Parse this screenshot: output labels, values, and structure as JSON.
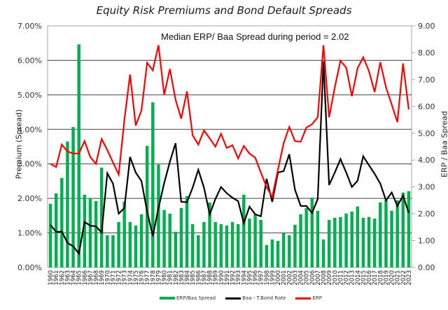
{
  "chart_data": {
    "type": "bar+line",
    "title": "Equity Risk Premiums and Bond Default Spreads",
    "annotation": "Median ERP/ Baa Spread during period = 2.02",
    "ylabel_left": "Premium (Spread)",
    "ylabel_right": "ERP / Baa Spread",
    "ylim_left": [
      0,
      7
    ],
    "ylim_right": [
      0,
      9
    ],
    "yticks_left": [
      "0.00%",
      "1.00%",
      "2.00%",
      "3.00%",
      "4.00%",
      "5.00%",
      "6.00%",
      "7.00%"
    ],
    "yticks_right": [
      "0.00",
      "1.00",
      "2.00",
      "3.00",
      "4.00",
      "5.00",
      "6.00",
      "7.00",
      "8.00",
      "9.00"
    ],
    "grid": true,
    "legend_position": "bottom",
    "categories": [
      "1960",
      "1961",
      "1962",
      "1963",
      "1964",
      "1965",
      "1966",
      "1967",
      "1968",
      "1969",
      "1970",
      "1971",
      "1972",
      "1973",
      "1974",
      "1975",
      "1976",
      "1977",
      "1978",
      "1979",
      "1980",
      "1981",
      "1982",
      "1983",
      "1984",
      "1985",
      "1986",
      "1987",
      "1988",
      "1989",
      "1990",
      "1991",
      "1992",
      "1993",
      "1994",
      "1995",
      "1996",
      "1997",
      "1998",
      "1999",
      "2000",
      "2001",
      "2002",
      "2003",
      "2004",
      "2005",
      "2006",
      "2007",
      "2008",
      "2009",
      "2010",
      "2011",
      "2012",
      "2013",
      "2014",
      "2015",
      "2016",
      "2017",
      "2018",
      "2019",
      "2020",
      "2021",
      "2022",
      "2023"
    ],
    "series": [
      {
        "name": "ERP/Baa Spread",
        "type": "bar",
        "axis": "right",
        "color": "#00b050",
        "values": [
          2.37,
          2.76,
          3.33,
          4.69,
          5.23,
          8.31,
          2.71,
          2.58,
          2.47,
          3.72,
          1.2,
          1.2,
          1.69,
          2.45,
          1.69,
          1.56,
          1.98,
          4.53,
          6.15,
          3.83,
          2.14,
          2.0,
          1.33,
          2.21,
          2.66,
          1.61,
          1.2,
          1.69,
          2.42,
          1.69,
          1.61,
          1.56,
          1.69,
          1.61,
          2.71,
          1.82,
          1.98,
          1.77,
          0.83,
          1.04,
          0.99,
          1.28,
          1.2,
          1.59,
          1.98,
          2.21,
          2.6,
          2.11,
          1.04,
          1.77,
          1.85,
          1.88,
          2.01,
          2.08,
          2.27,
          1.85,
          1.88,
          1.82,
          2.42,
          2.5,
          2.11,
          2.5,
          2.79,
          2.84
        ]
      },
      {
        "name": "Baa - T.Bond Rate",
        "type": "line",
        "axis": "left",
        "color": "#000000",
        "values": [
          1.23,
          1.03,
          1.04,
          0.71,
          0.61,
          0.4,
          1.32,
          1.21,
          1.19,
          1.01,
          2.73,
          2.43,
          1.56,
          1.72,
          3.2,
          2.75,
          2.5,
          1.62,
          0.91,
          1.72,
          2.45,
          3.06,
          3.6,
          1.9,
          1.89,
          2.31,
          2.83,
          2.31,
          1.54,
          1.98,
          2.33,
          2.15,
          2.02,
          1.92,
          1.28,
          1.76,
          1.54,
          1.48,
          2.57,
          1.9,
          2.75,
          2.79,
          3.28,
          2.25,
          1.78,
          1.78,
          1.58,
          1.98,
          5.97,
          2.39,
          2.75,
          3.14,
          2.75,
          2.33,
          2.51,
          3.22,
          2.96,
          2.71,
          2.43,
          1.94,
          2.17,
          1.78,
          2.08,
          1.58
        ]
      },
      {
        "name": "ERP",
        "type": "line",
        "axis": "left",
        "color": "#ff0000",
        "values": [
          3.0,
          2.91,
          3.56,
          3.36,
          3.3,
          3.3,
          3.66,
          3.2,
          3.0,
          3.72,
          3.4,
          3.04,
          2.69,
          4.27,
          5.59,
          4.11,
          4.55,
          5.93,
          5.71,
          6.44,
          5.0,
          5.75,
          4.86,
          4.31,
          5.1,
          3.83,
          3.56,
          3.97,
          3.74,
          3.5,
          3.87,
          3.46,
          3.54,
          3.16,
          3.52,
          3.3,
          3.18,
          2.75,
          2.33,
          2.04,
          2.83,
          3.6,
          4.07,
          3.66,
          3.64,
          4.05,
          4.15,
          4.35,
          6.44,
          4.35,
          5.22,
          5.99,
          5.79,
          4.96,
          5.77,
          6.09,
          5.69,
          5.08,
          5.95,
          5.22,
          4.72,
          4.21,
          5.91,
          4.58
        ]
      }
    ]
  },
  "legend": {
    "items": [
      {
        "label": "ERP/Baa Spread",
        "color": "#00b050"
      },
      {
        "label": "Baa - T.Bond Rate",
        "color": "#000000"
      },
      {
        "label": "ERP",
        "color": "#ff0000"
      }
    ]
  }
}
